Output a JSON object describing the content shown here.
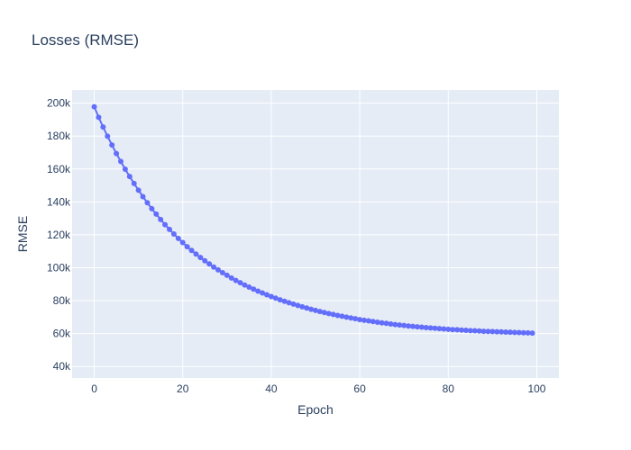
{
  "chart_data": {
    "type": "line",
    "title": "Losses (RMSE)",
    "xlabel": "Epoch",
    "ylabel": "RMSE",
    "xlim": [
      -5,
      105
    ],
    "ylim": [
      33000,
      208000
    ],
    "x_ticks": [
      0,
      20,
      40,
      60,
      80,
      100
    ],
    "y_ticks": [
      40000,
      60000,
      80000,
      100000,
      120000,
      140000,
      160000,
      180000,
      200000
    ],
    "y_tick_labels": [
      "40k",
      "60k",
      "80k",
      "100k",
      "120k",
      "140k",
      "160k",
      "180k",
      "200k"
    ],
    "x_tick_labels": [
      "0",
      "20",
      "40",
      "60",
      "80",
      "100"
    ],
    "grid": true,
    "colors": {
      "plot_bg": "#e5ecf6",
      "grid": "#ffffff",
      "series": "#636efa",
      "text": "#2a3f5f"
    },
    "series": [
      {
        "mode": "lines+markers",
        "x": [
          0,
          1,
          2,
          3,
          4,
          5,
          6,
          7,
          8,
          9,
          10,
          11,
          12,
          13,
          14,
          15,
          16,
          17,
          18,
          19,
          20,
          21,
          22,
          23,
          24,
          25,
          26,
          27,
          28,
          29,
          30,
          31,
          32,
          33,
          34,
          35,
          36,
          37,
          38,
          39,
          40,
          41,
          42,
          43,
          44,
          45,
          46,
          47,
          48,
          49,
          50,
          51,
          52,
          53,
          54,
          55,
          56,
          57,
          58,
          59,
          60,
          61,
          62,
          63,
          64,
          65,
          66,
          67,
          68,
          69,
          70,
          71,
          72,
          73,
          74,
          75,
          76,
          77,
          78,
          79,
          80,
          81,
          82,
          83,
          84,
          85,
          86,
          87,
          88,
          89,
          90,
          91,
          92,
          93,
          94,
          95,
          96,
          97,
          98,
          99
        ],
        "values": [
          197800,
          191400,
          185500,
          179900,
          174600,
          169400,
          164600,
          159900,
          155400,
          151200,
          147100,
          143200,
          139500,
          135900,
          132600,
          129300,
          126200,
          123300,
          120500,
          117800,
          115300,
          112800,
          110500,
          108300,
          106200,
          104200,
          102300,
          100400,
          98700,
          97000,
          95400,
          93800,
          92300,
          90900,
          89500,
          88200,
          87000,
          85800,
          84700,
          83600,
          82500,
          81500,
          80500,
          79600,
          78700,
          77900,
          77100,
          76300,
          75500,
          74800,
          74100,
          73400,
          72800,
          72200,
          71600,
          71000,
          70500,
          70000,
          69500,
          69000,
          68500,
          68100,
          67700,
          67300,
          66900,
          66500,
          66200,
          65800,
          65500,
          65200,
          64900,
          64600,
          64400,
          64100,
          63900,
          63600,
          63400,
          63200,
          63000,
          62800,
          62600,
          62400,
          62300,
          62100,
          62000,
          61800,
          61700,
          61600,
          61400,
          61300,
          61200,
          61100,
          61000,
          60900,
          60800,
          60700,
          60600,
          60500,
          60400,
          60300
        ]
      }
    ]
  }
}
